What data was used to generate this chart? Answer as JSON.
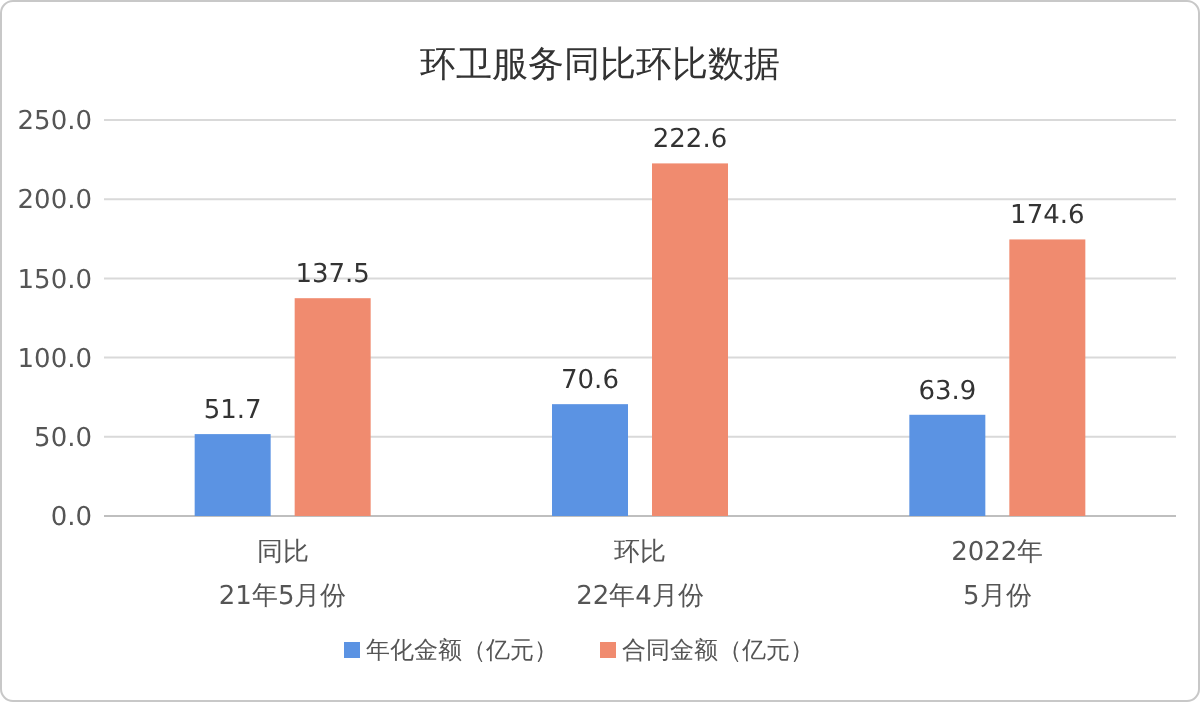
{
  "chart_data": {
    "type": "bar",
    "title": "环卫服务同比环比数据",
    "categories": [
      "同比\n21年5月份",
      "环比\n22年4月份",
      "2022年\n5月份"
    ],
    "series": [
      {
        "name": "年化金额（亿元）",
        "color": "#5b93e3",
        "values": [
          51.7,
          70.6,
          63.9
        ]
      },
      {
        "name": "合同金额（亿元）",
        "color": "#f08b6f",
        "values": [
          137.5,
          222.6,
          174.6
        ]
      }
    ],
    "ylim": [
      0,
      250
    ],
    "yticks": [
      {
        "value": 0,
        "label": "0.0"
      },
      {
        "value": 50,
        "label": "50.0"
      },
      {
        "value": 100,
        "label": "100.0"
      },
      {
        "value": 150,
        "label": "150.0"
      },
      {
        "value": 200,
        "label": "200.0"
      },
      {
        "value": 250,
        "label": "250.0"
      }
    ],
    "grid": "y",
    "legend": "bottom",
    "data_labels": true
  }
}
